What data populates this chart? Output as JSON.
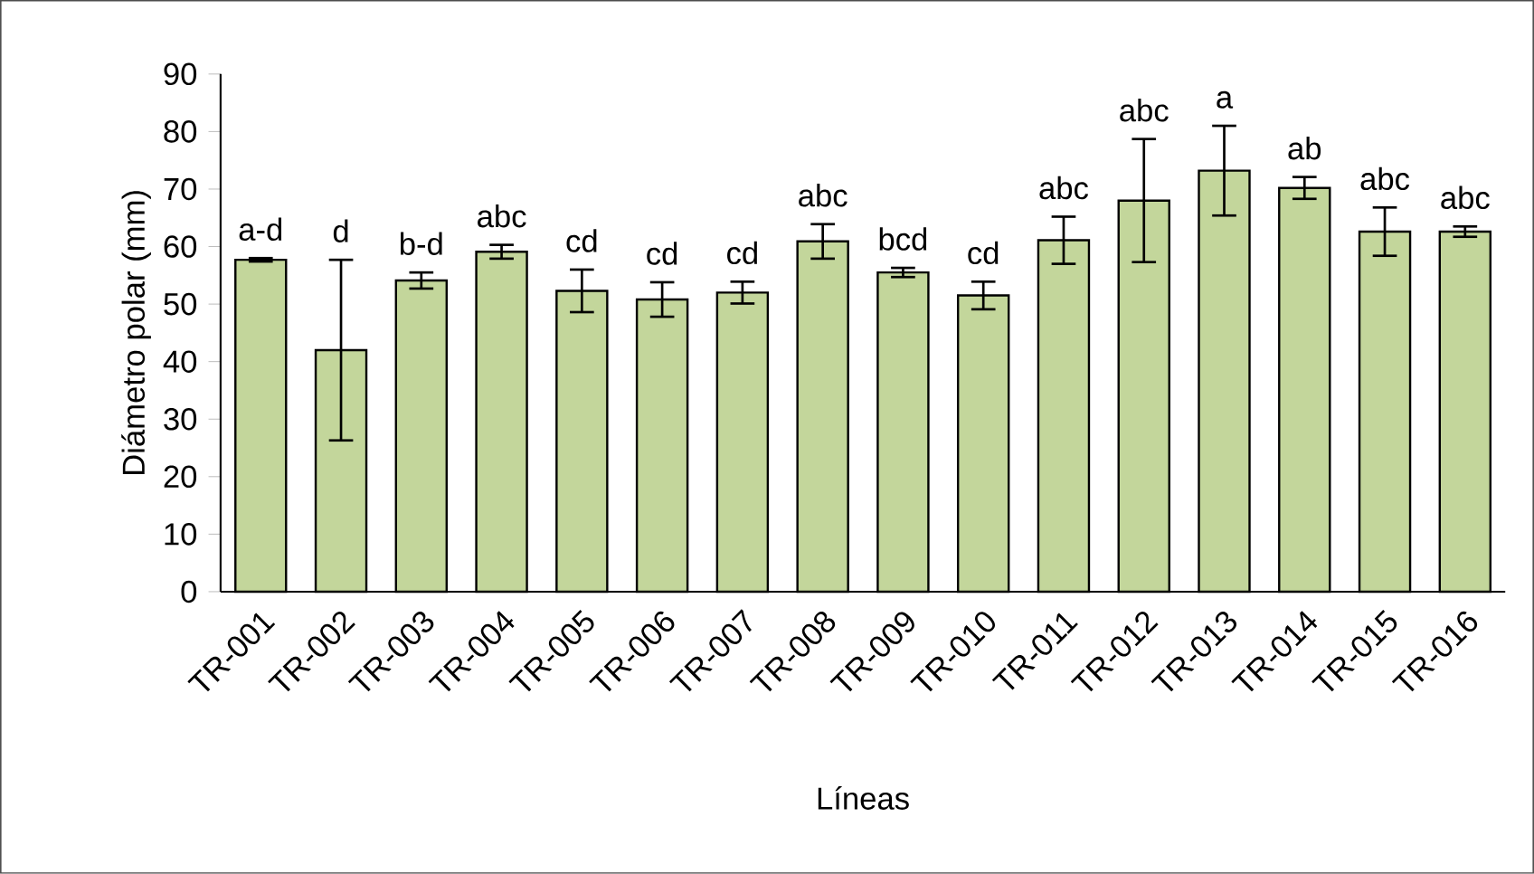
{
  "chart_data": {
    "type": "bar",
    "xlabel": "Líneas",
    "ylabel": "Diámetro polar (mm)",
    "categories": [
      "TR-001",
      "TR-002",
      "TR-003",
      "TR-004",
      "TR-005",
      "TR-006",
      "TR-007",
      "TR-008",
      "TR-009",
      "TR-010",
      "TR-011",
      "TR-012",
      "TR-013",
      "TR-014",
      "TR-015",
      "TR-016"
    ],
    "values": [
      57.7,
      42.0,
      54.1,
      59.1,
      52.3,
      50.8,
      52.0,
      60.9,
      55.5,
      51.5,
      61.1,
      68.0,
      73.2,
      70.2,
      62.6,
      62.6
    ],
    "errors": [
      0.3,
      15.7,
      1.4,
      1.2,
      3.7,
      3.0,
      1.9,
      3.0,
      0.8,
      2.4,
      4.1,
      10.7,
      7.8,
      1.9,
      4.2,
      0.9
    ],
    "color": "#c3d69b",
    "ylim": [
      0,
      90
    ],
    "yticks": [
      0,
      10,
      20,
      30,
      40,
      50,
      60,
      70,
      80,
      90
    ],
    "grid": false,
    "annotations": [
      {
        "text": "a-d",
        "x": "TR-001",
        "y": 57.7
      },
      "d",
      {
        "text": "b-d",
        "x": "TR-003",
        "y": 54.1
      },
      {
        "text": "abc",
        "x": "TR-004",
        "y": 59.1
      },
      {
        "text": "cd",
        "x": "TR-005",
        "y": 52.3
      },
      {
        "text": "cd",
        "x": "TR-006",
        "y": 50.8
      },
      {
        "text": "cd",
        "x": "TR-007",
        "y": 52.0
      },
      {
        "text": "abc",
        "x": "TR-008",
        "y": 60.9
      },
      {
        "text": "bcd",
        "x": "TR-009",
        "y": 55.5
      },
      {
        "text": "cd",
        "x": "TR-010",
        "y": 51.5
      },
      {
        "text": "abc",
        "x": "TR-011",
        "y": 61.1
      },
      {
        "text": "abc",
        "x": "TR-012",
        "y": 68.0
      },
      {
        "text": "a",
        "x": "TR-013",
        "y": 73.2
      },
      {
        "text": "ab",
        "x": "TR-014",
        "y": 70.2
      },
      {
        "text": "abc",
        "x": "TR-015",
        "y": 62.6
      },
      {
        "text": "abc",
        "x": "TR-016",
        "y": 62.6
      }
    ]
  }
}
